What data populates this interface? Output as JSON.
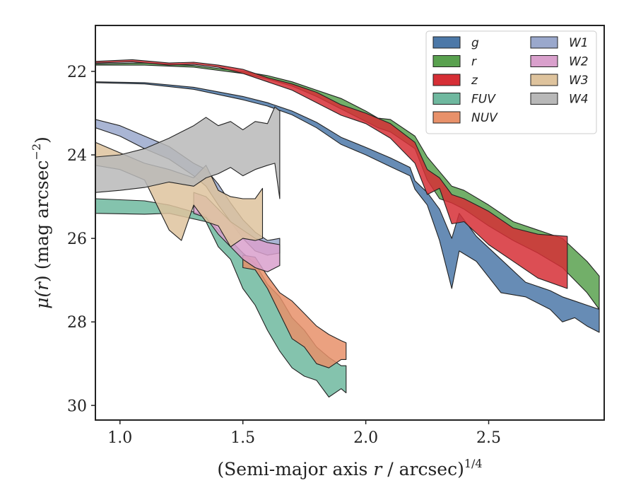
{
  "chart_data": {
    "type": "area",
    "title": "",
    "xlabel": {
      "prefix": "(Semi-major axis ",
      "var": "r",
      "suffix": " / arcsec)",
      "sup": "1/4"
    },
    "ylabel": {
      "prefix": "μ(",
      "var": "r",
      "suffix": ") (mag arcsec",
      "sup": "−2",
      "close": ")"
    },
    "xlim": [
      0.9,
      2.97
    ],
    "ylim": [
      30.35,
      20.9
    ],
    "xticks": [
      1.0,
      1.5,
      2.0,
      2.5
    ],
    "xtick_labels": [
      "1.0",
      "1.5",
      "2.0",
      "2.5"
    ],
    "yticks": [
      22,
      24,
      26,
      28,
      30
    ],
    "ytick_labels": [
      "22",
      "24",
      "26",
      "28",
      "30"
    ],
    "grid": false,
    "legend_position": "top-right",
    "legend_columns": 2,
    "series": [
      {
        "name": "g",
        "color": "#4c78a8",
        "points": [
          [
            0.9,
            22.25
          ],
          [
            1.1,
            22.27
          ],
          [
            1.3,
            22.38
          ],
          [
            1.5,
            22.6
          ],
          [
            1.6,
            22.75
          ],
          [
            1.7,
            22.95
          ],
          [
            1.8,
            23.22
          ],
          [
            1.9,
            23.58
          ],
          [
            2.0,
            23.82
          ],
          [
            2.1,
            24.07
          ],
          [
            2.18,
            24.3
          ],
          [
            2.2,
            24.62
          ],
          [
            2.25,
            24.9
          ],
          [
            2.3,
            25.3
          ],
          [
            2.35,
            26.0
          ],
          [
            2.38,
            25.4
          ],
          [
            2.45,
            25.95
          ],
          [
            2.55,
            26.5
          ],
          [
            2.65,
            27.05
          ],
          [
            2.75,
            27.25
          ],
          [
            2.8,
            27.4
          ],
          [
            2.85,
            27.5
          ],
          [
            2.9,
            27.6
          ],
          [
            2.95,
            27.7
          ]
        ],
        "lower": [
          [
            0.9,
            22.27
          ],
          [
            1.1,
            22.3
          ],
          [
            1.3,
            22.43
          ],
          [
            1.5,
            22.68
          ],
          [
            1.6,
            22.83
          ],
          [
            1.7,
            23.04
          ],
          [
            1.8,
            23.35
          ],
          [
            1.9,
            23.75
          ],
          [
            2.0,
            24.0
          ],
          [
            2.1,
            24.28
          ],
          [
            2.18,
            24.5
          ],
          [
            2.2,
            24.82
          ],
          [
            2.25,
            25.2
          ],
          [
            2.3,
            26.05
          ],
          [
            2.35,
            27.2
          ],
          [
            2.38,
            26.3
          ],
          [
            2.45,
            26.55
          ],
          [
            2.55,
            27.3
          ],
          [
            2.65,
            27.4
          ],
          [
            2.75,
            27.7
          ],
          [
            2.8,
            28.0
          ],
          [
            2.85,
            27.9
          ],
          [
            2.9,
            28.1
          ],
          [
            2.95,
            28.25
          ]
        ]
      },
      {
        "name": "r",
        "color": "#59a14f",
        "points": [
          [
            0.9,
            21.82
          ],
          [
            1.1,
            21.8
          ],
          [
            1.3,
            21.86
          ],
          [
            1.5,
            22.0
          ],
          [
            1.6,
            22.1
          ],
          [
            1.7,
            22.25
          ],
          [
            1.8,
            22.45
          ],
          [
            1.9,
            22.65
          ],
          [
            2.0,
            22.95
          ],
          [
            2.05,
            23.12
          ],
          [
            2.1,
            23.15
          ],
          [
            2.2,
            23.55
          ],
          [
            2.25,
            24.05
          ],
          [
            2.3,
            24.4
          ],
          [
            2.35,
            24.75
          ],
          [
            2.4,
            24.85
          ],
          [
            2.5,
            25.2
          ],
          [
            2.6,
            25.6
          ],
          [
            2.7,
            25.8
          ],
          [
            2.8,
            26.0
          ],
          [
            2.9,
            26.55
          ],
          [
            2.95,
            26.9
          ]
        ],
        "lower": [
          [
            0.9,
            21.85
          ],
          [
            1.1,
            21.85
          ],
          [
            1.3,
            21.9
          ],
          [
            1.5,
            22.05
          ],
          [
            1.6,
            22.18
          ],
          [
            1.7,
            22.35
          ],
          [
            1.8,
            22.6
          ],
          [
            1.9,
            22.9
          ],
          [
            2.0,
            23.2
          ],
          [
            2.05,
            23.35
          ],
          [
            2.1,
            23.45
          ],
          [
            2.2,
            23.85
          ],
          [
            2.25,
            24.6
          ],
          [
            2.3,
            25.05
          ],
          [
            2.35,
            25.15
          ],
          [
            2.4,
            25.3
          ],
          [
            2.5,
            25.7
          ],
          [
            2.6,
            26.05
          ],
          [
            2.7,
            26.35
          ],
          [
            2.8,
            26.7
          ],
          [
            2.9,
            27.3
          ],
          [
            2.95,
            27.7
          ]
        ]
      },
      {
        "name": "z",
        "color": "#d62f36",
        "points": [
          [
            0.9,
            21.76
          ],
          [
            1.05,
            21.72
          ],
          [
            1.2,
            21.8
          ],
          [
            1.3,
            21.78
          ],
          [
            1.4,
            21.85
          ],
          [
            1.5,
            21.95
          ],
          [
            1.6,
            22.15
          ],
          [
            1.7,
            22.3
          ],
          [
            1.8,
            22.5
          ],
          [
            1.9,
            22.8
          ],
          [
            2.0,
            23.0
          ],
          [
            2.1,
            23.25
          ],
          [
            2.2,
            23.7
          ],
          [
            2.25,
            24.35
          ],
          [
            2.3,
            24.55
          ],
          [
            2.35,
            24.95
          ],
          [
            2.4,
            25.05
          ],
          [
            2.5,
            25.35
          ],
          [
            2.6,
            25.75
          ],
          [
            2.7,
            25.9
          ],
          [
            2.82,
            25.95
          ]
        ],
        "lower": [
          [
            0.9,
            21.8
          ],
          [
            1.05,
            21.77
          ],
          [
            1.2,
            21.85
          ],
          [
            1.3,
            21.83
          ],
          [
            1.4,
            21.9
          ],
          [
            1.5,
            22.05
          ],
          [
            1.6,
            22.25
          ],
          [
            1.7,
            22.45
          ],
          [
            1.8,
            22.75
          ],
          [
            1.9,
            23.05
          ],
          [
            2.0,
            23.25
          ],
          [
            2.1,
            23.6
          ],
          [
            2.2,
            24.2
          ],
          [
            2.25,
            24.95
          ],
          [
            2.3,
            24.8
          ],
          [
            2.35,
            25.65
          ],
          [
            2.4,
            25.6
          ],
          [
            2.5,
            26.15
          ],
          [
            2.6,
            26.55
          ],
          [
            2.7,
            26.95
          ],
          [
            2.82,
            27.2
          ]
        ]
      },
      {
        "name": "FUV",
        "color": "#6fb89f",
        "points": [
          [
            0.9,
            25.05
          ],
          [
            1.1,
            25.1
          ],
          [
            1.2,
            25.2
          ],
          [
            1.35,
            25.45
          ],
          [
            1.4,
            25.8
          ],
          [
            1.45,
            26.05
          ],
          [
            1.5,
            26.35
          ],
          [
            1.55,
            26.6
          ],
          [
            1.6,
            27.1
          ],
          [
            1.65,
            27.4
          ],
          [
            1.7,
            27.9
          ],
          [
            1.75,
            28.2
          ],
          [
            1.8,
            28.6
          ],
          [
            1.85,
            28.85
          ],
          [
            1.9,
            29.05
          ],
          [
            1.92,
            29.05
          ]
        ],
        "lower": [
          [
            0.9,
            25.4
          ],
          [
            1.1,
            25.42
          ],
          [
            1.2,
            25.4
          ],
          [
            1.35,
            25.6
          ],
          [
            1.4,
            26.2
          ],
          [
            1.45,
            26.5
          ],
          [
            1.5,
            27.2
          ],
          [
            1.55,
            27.6
          ],
          [
            1.6,
            28.2
          ],
          [
            1.65,
            28.7
          ],
          [
            1.7,
            29.1
          ],
          [
            1.75,
            29.3
          ],
          [
            1.8,
            29.4
          ],
          [
            1.85,
            29.8
          ],
          [
            1.9,
            29.6
          ],
          [
            1.92,
            29.7
          ]
        ]
      },
      {
        "name": "NUV",
        "color": "#e8916a",
        "points": [
          [
            1.5,
            26.4
          ],
          [
            1.55,
            26.45
          ],
          [
            1.6,
            26.9
          ],
          [
            1.65,
            27.3
          ],
          [
            1.7,
            27.5
          ],
          [
            1.75,
            27.8
          ],
          [
            1.8,
            28.1
          ],
          [
            1.85,
            28.3
          ],
          [
            1.9,
            28.45
          ],
          [
            1.92,
            28.5
          ]
        ],
        "lower": [
          [
            1.5,
            26.7
          ],
          [
            1.55,
            26.75
          ],
          [
            1.6,
            27.2
          ],
          [
            1.65,
            27.8
          ],
          [
            1.7,
            28.4
          ],
          [
            1.75,
            28.6
          ],
          [
            1.8,
            29.0
          ],
          [
            1.85,
            29.1
          ],
          [
            1.9,
            28.9
          ],
          [
            1.92,
            28.9
          ]
        ]
      },
      {
        "name": "W1",
        "color": "#9aa8cc",
        "points": [
          [
            0.9,
            23.15
          ],
          [
            1.0,
            23.3
          ],
          [
            1.1,
            23.55
          ],
          [
            1.2,
            23.8
          ],
          [
            1.3,
            24.2
          ],
          [
            1.35,
            24.35
          ],
          [
            1.4,
            24.7
          ],
          [
            1.45,
            25.15
          ],
          [
            1.5,
            25.55
          ],
          [
            1.55,
            25.85
          ],
          [
            1.6,
            26.05
          ],
          [
            1.65,
            26.0
          ]
        ],
        "lower": [
          [
            0.9,
            23.35
          ],
          [
            1.0,
            23.55
          ],
          [
            1.1,
            23.85
          ],
          [
            1.2,
            24.1
          ],
          [
            1.3,
            24.5
          ],
          [
            1.35,
            24.75
          ],
          [
            1.4,
            25.2
          ],
          [
            1.45,
            25.6
          ],
          [
            1.5,
            26.0
          ],
          [
            1.55,
            26.3
          ],
          [
            1.6,
            26.4
          ],
          [
            1.65,
            26.35
          ]
        ]
      },
      {
        "name": "W2",
        "color": "#d9a0cc",
        "points": [
          [
            1.3,
            24.9
          ],
          [
            1.35,
            25.0
          ],
          [
            1.4,
            25.3
          ],
          [
            1.45,
            25.6
          ],
          [
            1.5,
            25.8
          ],
          [
            1.55,
            26.0
          ],
          [
            1.6,
            26.1
          ],
          [
            1.65,
            26.15
          ]
        ],
        "lower": [
          [
            1.3,
            25.4
          ],
          [
            1.35,
            25.5
          ],
          [
            1.4,
            25.9
          ],
          [
            1.45,
            26.2
          ],
          [
            1.5,
            26.5
          ],
          [
            1.55,
            26.7
          ],
          [
            1.6,
            26.8
          ],
          [
            1.65,
            26.65
          ]
        ]
      },
      {
        "name": "W3",
        "color": "#dec39d",
        "points": [
          [
            0.9,
            23.7
          ],
          [
            1.0,
            23.95
          ],
          [
            1.1,
            24.2
          ],
          [
            1.2,
            24.35
          ],
          [
            1.3,
            24.55
          ],
          [
            1.35,
            24.25
          ],
          [
            1.4,
            24.85
          ],
          [
            1.45,
            25.0
          ],
          [
            1.5,
            25.05
          ],
          [
            1.55,
            25.05
          ],
          [
            1.58,
            24.8
          ]
        ],
        "lower": [
          [
            0.9,
            24.25
          ],
          [
            1.0,
            24.35
          ],
          [
            1.1,
            24.6
          ],
          [
            1.2,
            25.8
          ],
          [
            1.25,
            26.05
          ],
          [
            1.3,
            25.2
          ],
          [
            1.35,
            25.6
          ],
          [
            1.4,
            25.7
          ],
          [
            1.45,
            26.2
          ],
          [
            1.5,
            26.0
          ],
          [
            1.55,
            26.05
          ],
          [
            1.58,
            26.0
          ]
        ]
      },
      {
        "name": "W4",
        "color": "#b8b8b8",
        "points": [
          [
            0.9,
            24.05
          ],
          [
            1.0,
            24.0
          ],
          [
            1.1,
            23.85
          ],
          [
            1.2,
            23.6
          ],
          [
            1.3,
            23.3
          ],
          [
            1.35,
            23.1
          ],
          [
            1.4,
            23.3
          ],
          [
            1.45,
            23.2
          ],
          [
            1.5,
            23.4
          ],
          [
            1.55,
            23.2
          ],
          [
            1.6,
            23.25
          ],
          [
            1.63,
            22.85
          ],
          [
            1.65,
            22.95
          ]
        ],
        "lower": [
          [
            0.9,
            24.9
          ],
          [
            1.0,
            24.85
          ],
          [
            1.1,
            24.78
          ],
          [
            1.2,
            24.65
          ],
          [
            1.3,
            24.75
          ],
          [
            1.35,
            24.55
          ],
          [
            1.4,
            24.45
          ],
          [
            1.45,
            24.3
          ],
          [
            1.5,
            24.5
          ],
          [
            1.55,
            24.35
          ],
          [
            1.6,
            24.25
          ],
          [
            1.63,
            24.2
          ],
          [
            1.65,
            25.05
          ]
        ]
      }
    ]
  }
}
